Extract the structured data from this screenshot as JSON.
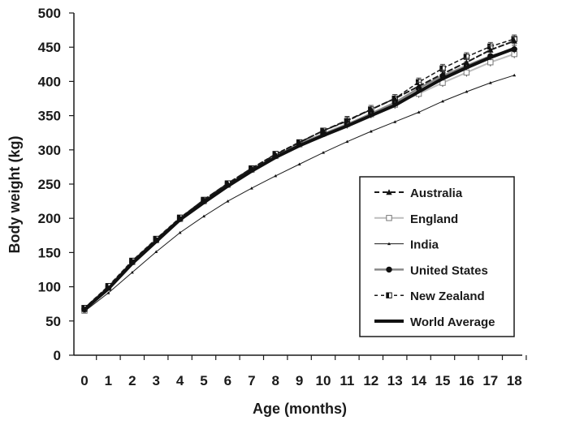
{
  "chart_data": {
    "type": "line",
    "xlabel": "Age (months)",
    "ylabel": "Body weight (kg)",
    "x": [
      0,
      1,
      2,
      3,
      4,
      5,
      6,
      7,
      8,
      9,
      10,
      11,
      12,
      13,
      14,
      15,
      16,
      17,
      18
    ],
    "x_tick_labels": [
      "0",
      "1",
      "2",
      "3",
      "4",
      "5",
      "6",
      "7",
      "8",
      "9",
      "10",
      "11",
      "12",
      "13",
      "14",
      "15",
      "16",
      "17",
      "18"
    ],
    "ylim": [
      0,
      500
    ],
    "y_ticks": [
      0,
      50,
      100,
      150,
      200,
      250,
      300,
      350,
      400,
      450,
      500
    ],
    "y_tick_labels": [
      "0",
      "50",
      "100",
      "150",
      "200",
      "250",
      "300",
      "350",
      "400",
      "450",
      "500"
    ],
    "grid": false,
    "legend_position": "right",
    "series": [
      {
        "name": "Australia",
        "color": "#1a1a1a",
        "dash": "6,4",
        "marker": "triangle",
        "width": 2,
        "values": [
          67,
          98,
          137,
          169,
          200,
          227,
          251,
          273,
          293,
          311,
          328,
          343,
          359,
          375,
          393,
          411,
          428,
          446,
          459
        ]
      },
      {
        "name": "England",
        "color": "#bdbdbd",
        "dash": "",
        "marker": "square-open",
        "width": 2,
        "values": [
          65,
          99,
          136,
          168,
          199,
          225,
          249,
          271,
          291,
          308,
          324,
          338,
          352,
          366,
          382,
          398,
          413,
          428,
          440
        ]
      },
      {
        "name": "India",
        "color": "#1a1a1a",
        "dash": "",
        "marker": "small-triangle",
        "width": 1,
        "values": [
          64,
          91,
          121,
          151,
          179,
          203,
          225,
          244,
          262,
          279,
          296,
          312,
          327,
          341,
          355,
          371,
          385,
          398,
          409
        ]
      },
      {
        "name": "United States",
        "color": "#888888",
        "dash": "",
        "marker": "circle",
        "width": 2.5,
        "values": [
          68,
          100,
          136,
          168,
          199,
          225,
          249,
          271,
          291,
          309,
          323,
          337,
          353,
          369,
          390,
          408,
          423,
          437,
          447
        ]
      },
      {
        "name": "New Zealand",
        "color": "#1a1a1a",
        "dash": "4,4",
        "marker": "square-half",
        "width": 1.5,
        "values": [
          69,
          101,
          138,
          170,
          201,
          227,
          251,
          273,
          294,
          311,
          328,
          342,
          359,
          375,
          399,
          419,
          436,
          451,
          462
        ]
      },
      {
        "name": "World Average",
        "color": "#111111",
        "dash": "",
        "marker": "none",
        "width": 4,
        "values": [
          67,
          97,
          134,
          166,
          198,
          223,
          247,
          269,
          289,
          306,
          321,
          335,
          350,
          365,
          385,
          404,
          420,
          435,
          448
        ]
      }
    ]
  }
}
